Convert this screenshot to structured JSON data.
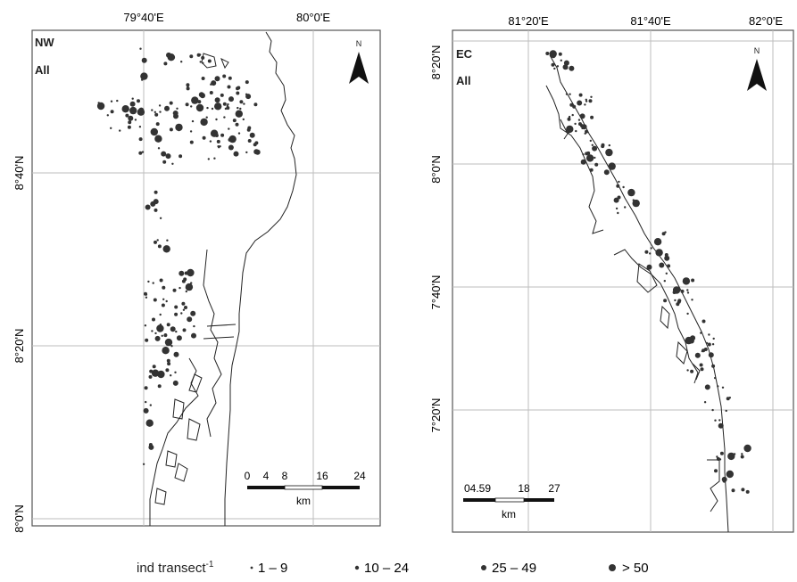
{
  "panels": [
    {
      "id": "nw",
      "region_label": "NW",
      "subset_label": "All",
      "north_label": "N",
      "lon_ticks": [
        "79°40'E",
        "80°0'E"
      ],
      "lat_ticks": [
        "8°40'N",
        "8°20'N",
        "8°0'N"
      ],
      "scale_ticks": [
        "0",
        "4",
        "8",
        "16",
        "24"
      ],
      "scale_unit": "km"
    },
    {
      "id": "ec",
      "region_label": "EC",
      "subset_label": "All",
      "north_label": "N",
      "lon_ticks": [
        "81°20'E",
        "81°40'E",
        "82°0'E"
      ],
      "lat_ticks": [
        "8°20'N",
        "8°0'N",
        "7°40'N",
        "7°20'N"
      ],
      "scale_ticks": [
        "04.59",
        "18",
        "27"
      ],
      "scale_unit": "km"
    }
  ],
  "legend": {
    "title": "ind transect",
    "title_superscript": "-1",
    "classes": [
      {
        "label": "1 – 9"
      },
      {
        "label": "10 – 24"
      },
      {
        "label": "25 – 49"
      },
      {
        "label": "> 50"
      }
    ]
  },
  "colors": {
    "points": "#333333",
    "coast": "#222222",
    "grid": "#bdbdbd",
    "frame": "#555555"
  }
}
